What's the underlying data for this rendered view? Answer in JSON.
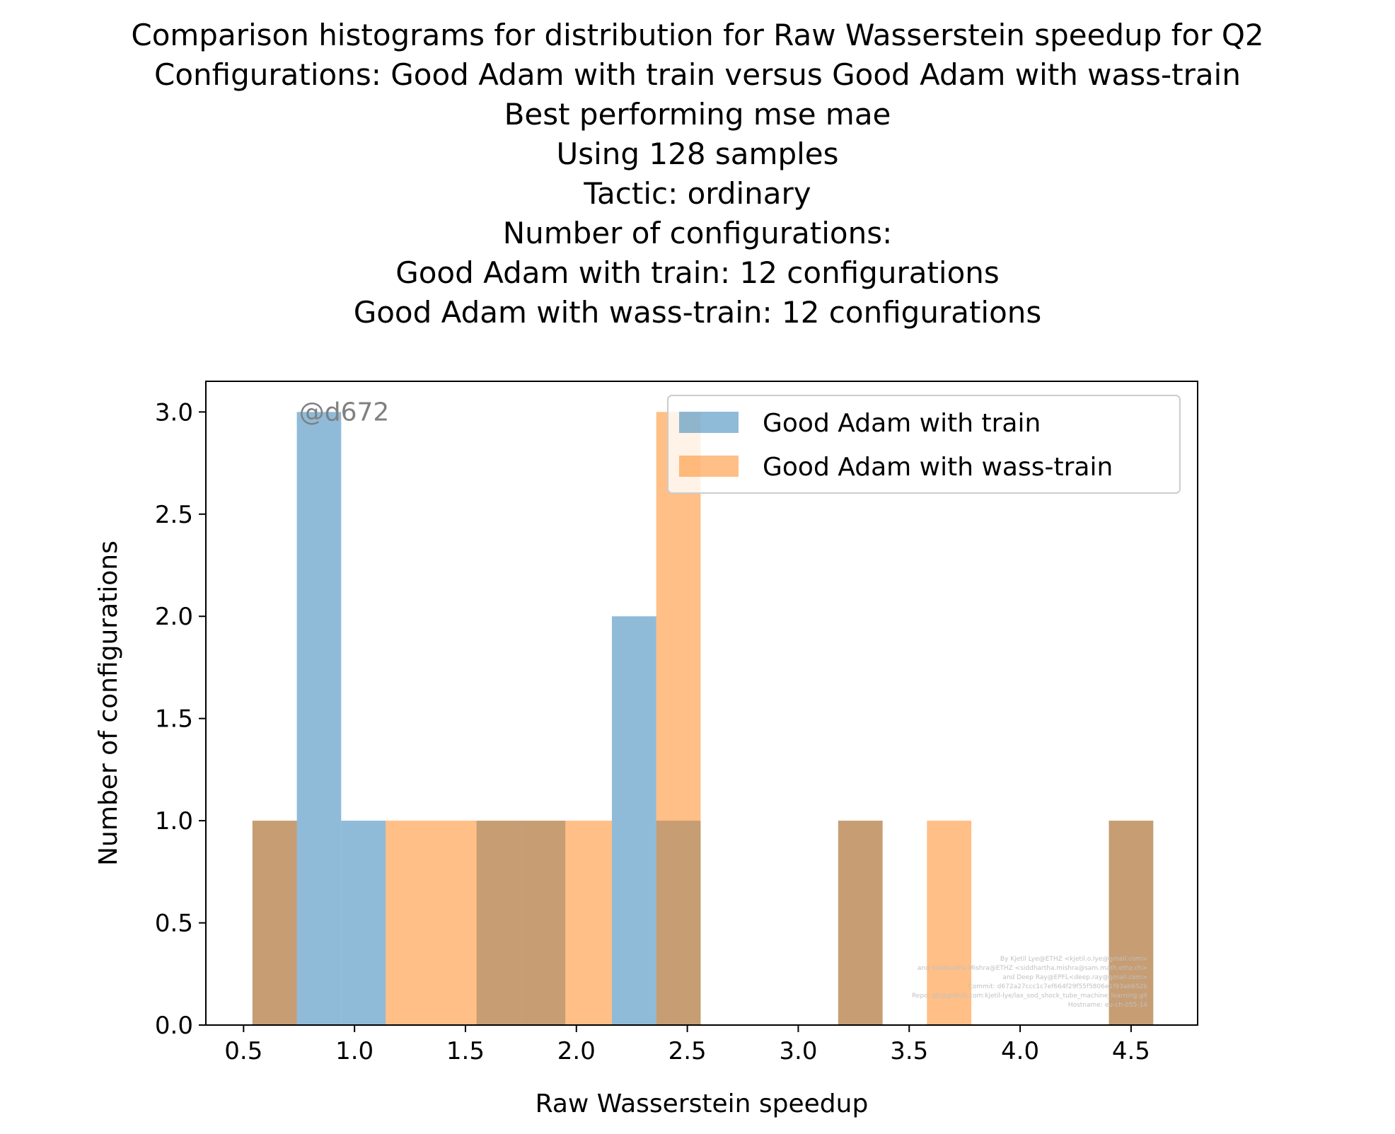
{
  "chart_data": {
    "type": "bar",
    "title_lines": [
      "Comparison histograms for distribution for Raw Wasserstein speedup for Q2",
      "Configurations: Good Adam with train versus Good Adam with wass-train",
      "Best performing mse mae",
      "Using 128 samples",
      "Tactic: ordinary",
      "Number of configurations:",
      "Good Adam with train: 12 configurations",
      "Good Adam with wass-train: 12 configurations"
    ],
    "xlabel": "Raw Wasserstein speedup",
    "ylabel": "Number of configurations",
    "xlim": [
      0.33,
      4.8
    ],
    "ylim": [
      0,
      3.15
    ],
    "xticks": [
      "0.5",
      "1.0",
      "1.5",
      "2.0",
      "2.5",
      "3.0",
      "3.5",
      "4.0",
      "4.5"
    ],
    "xtick_values": [
      0.5,
      1.0,
      1.5,
      2.0,
      2.5,
      3.0,
      3.5,
      4.0,
      4.5
    ],
    "yticks": [
      "0.0",
      "0.5",
      "1.0",
      "1.5",
      "2.0",
      "2.5",
      "3.0"
    ],
    "ytick_values": [
      0.0,
      0.5,
      1.0,
      1.5,
      2.0,
      2.5,
      3.0
    ],
    "legend_position": "upper right",
    "annotation": "@d672",
    "series": [
      {
        "name": "Good Adam with train",
        "color": "#1f77b4",
        "alpha": 0.5,
        "bins": [
          {
            "x0": 0.54,
            "x1": 0.74,
            "count": 1
          },
          {
            "x0": 0.74,
            "x1": 0.94,
            "count": 3
          },
          {
            "x0": 0.94,
            "x1": 1.14,
            "count": 1
          },
          {
            "x0": 1.55,
            "x1": 1.75,
            "count": 1
          },
          {
            "x0": 1.75,
            "x1": 1.95,
            "count": 1
          },
          {
            "x0": 2.16,
            "x1": 2.36,
            "count": 2
          },
          {
            "x0": 2.36,
            "x1": 2.56,
            "count": 1
          },
          {
            "x0": 3.18,
            "x1": 3.38,
            "count": 1
          },
          {
            "x0": 4.4,
            "x1": 4.6,
            "count": 1
          }
        ]
      },
      {
        "name": "Good Adam with wass-train",
        "color": "#ff7f0e",
        "alpha": 0.5,
        "bins": [
          {
            "x0": 0.54,
            "x1": 0.74,
            "count": 1
          },
          {
            "x0": 1.14,
            "x1": 1.35,
            "count": 1
          },
          {
            "x0": 1.35,
            "x1": 1.55,
            "count": 1
          },
          {
            "x0": 1.55,
            "x1": 1.75,
            "count": 1
          },
          {
            "x0": 1.75,
            "x1": 1.95,
            "count": 1
          },
          {
            "x0": 1.95,
            "x1": 2.16,
            "count": 1
          },
          {
            "x0": 2.36,
            "x1": 2.56,
            "count": 3
          },
          {
            "x0": 3.18,
            "x1": 3.38,
            "count": 1
          },
          {
            "x0": 3.58,
            "x1": 3.78,
            "count": 1
          },
          {
            "x0": 4.4,
            "x1": 4.6,
            "count": 1
          }
        ]
      }
    ],
    "credits": [
      "By Kjetil Lye@ETHZ <kjetil.o.lye@gmail.com>",
      "and Siddhartha Mishra@ETHZ <siddhartha.mishra@sam.math.ethz.ch>",
      "and Deep Ray@EPFL<deep.ray@gmail.com>",
      "Commit: d672a27ccc1c7ef664f29f55f5806e1f93ab652b",
      "Repo: git@github.com:kjetil-lye/lax_sod_shock_tube_machine_learning.git",
      "Hostname: eu-ch-055-14"
    ]
  }
}
